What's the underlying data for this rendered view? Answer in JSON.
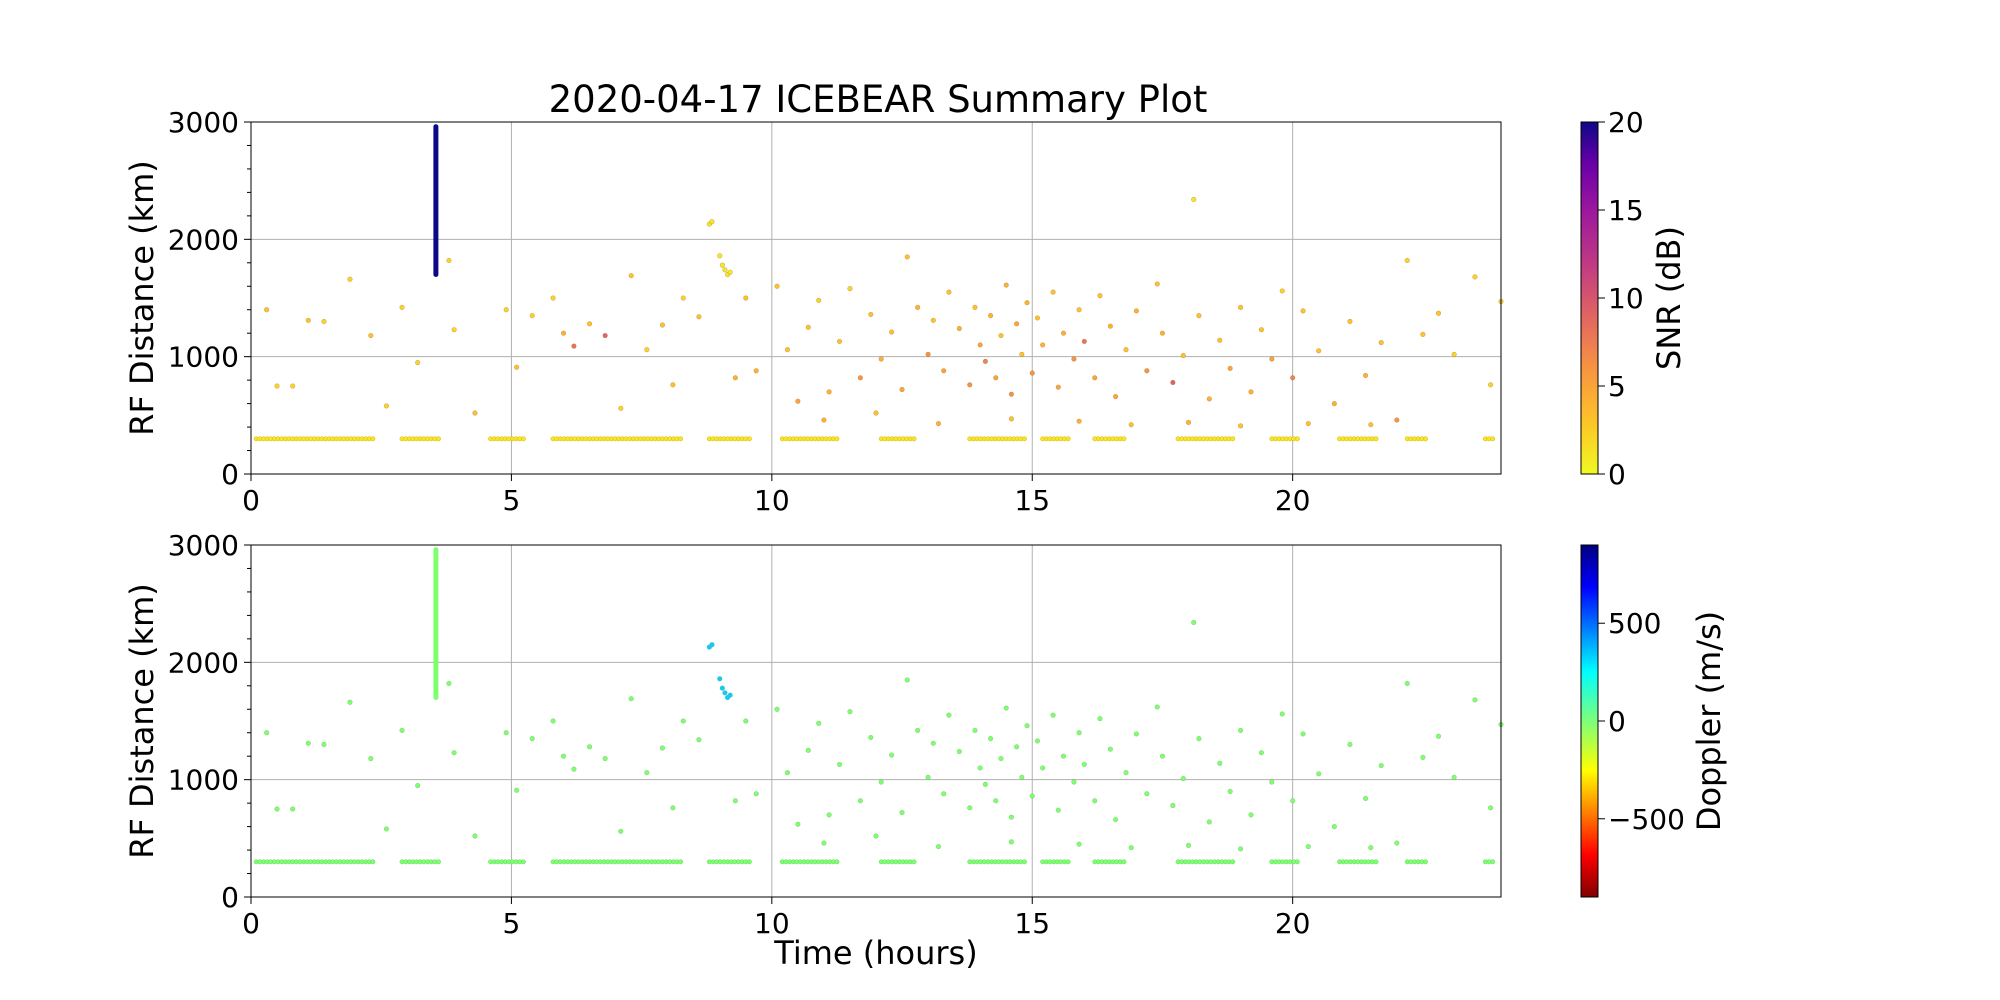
{
  "figure": {
    "title": "2020-04-17 ICEBEAR Summary Plot",
    "xlabel": "Time (hours)"
  },
  "chart_data": [
    {
      "type": "scatter",
      "name": "snr-panel",
      "ylabel": "RF Distance (km)",
      "xlim": [
        0,
        24
      ],
      "ylim": [
        0,
        3000
      ],
      "xticks": [
        0,
        5,
        10,
        15,
        20
      ],
      "yticks": [
        0,
        1000,
        2000,
        3000
      ],
      "grid": true,
      "colorbar": {
        "label": "SNR (dB)",
        "range": [
          0,
          20
        ],
        "ticks": [
          0,
          5,
          10,
          15,
          20
        ],
        "tick_labels": [
          "0",
          "5",
          "10",
          "15",
          "20"
        ],
        "colormap": "plasma_r"
      },
      "points": [
        [
          0.3,
          1400,
          3
        ],
        [
          0.5,
          750,
          2
        ],
        [
          0.8,
          750,
          2
        ],
        [
          1.1,
          1310,
          3
        ],
        [
          1.4,
          1300,
          2
        ],
        [
          1.9,
          1660,
          2
        ],
        [
          2.3,
          1180,
          3
        ],
        [
          2.6,
          580,
          2
        ],
        [
          2.9,
          1420,
          2
        ],
        [
          3.2,
          950,
          2
        ],
        [
          3.8,
          1820,
          2
        ],
        [
          3.9,
          1230,
          2
        ],
        [
          4.3,
          520,
          3
        ],
        [
          4.9,
          1400,
          2
        ],
        [
          5.1,
          910,
          3
        ],
        [
          5.4,
          1350,
          2
        ],
        [
          5.8,
          1500,
          2
        ],
        [
          6.0,
          1200,
          4
        ],
        [
          6.2,
          1090,
          8
        ],
        [
          6.5,
          1280,
          3
        ],
        [
          6.8,
          1180,
          9
        ],
        [
          7.1,
          560,
          2
        ],
        [
          7.3,
          1690,
          3
        ],
        [
          7.6,
          1060,
          2
        ],
        [
          7.9,
          1270,
          3
        ],
        [
          8.1,
          760,
          3
        ],
        [
          8.3,
          1500,
          2
        ],
        [
          8.6,
          1340,
          3
        ],
        [
          8.8,
          2130,
          1
        ],
        [
          8.85,
          2150,
          1
        ],
        [
          9.0,
          1860,
          1
        ],
        [
          9.05,
          1780,
          1
        ],
        [
          9.1,
          1740,
          1
        ],
        [
          9.15,
          1700,
          1
        ],
        [
          9.2,
          1720,
          1
        ],
        [
          9.3,
          820,
          4
        ],
        [
          9.5,
          1500,
          3
        ],
        [
          9.7,
          880,
          4
        ],
        [
          10.1,
          1600,
          3
        ],
        [
          10.3,
          1060,
          3
        ],
        [
          10.5,
          620,
          5
        ],
        [
          10.7,
          1250,
          3
        ],
        [
          10.9,
          1480,
          2
        ],
        [
          11.1,
          700,
          4
        ],
        [
          11.3,
          1130,
          3
        ],
        [
          11.5,
          1580,
          2
        ],
        [
          11.7,
          820,
          6
        ],
        [
          11.9,
          1360,
          3
        ],
        [
          12.1,
          980,
          4
        ],
        [
          12.3,
          1210,
          3
        ],
        [
          12.5,
          720,
          5
        ],
        [
          12.6,
          1850,
          3
        ],
        [
          12.8,
          1420,
          4
        ],
        [
          13.0,
          1020,
          6
        ],
        [
          13.1,
          1310,
          3
        ],
        [
          13.3,
          880,
          5
        ],
        [
          13.4,
          1550,
          3
        ],
        [
          13.6,
          1240,
          4
        ],
        [
          13.8,
          760,
          6
        ],
        [
          13.9,
          1420,
          3
        ],
        [
          14.0,
          1100,
          5
        ],
        [
          14.1,
          960,
          7
        ],
        [
          14.2,
          1350,
          4
        ],
        [
          14.3,
          820,
          5
        ],
        [
          14.4,
          1180,
          3
        ],
        [
          14.5,
          1610,
          4
        ],
        [
          14.6,
          680,
          6
        ],
        [
          14.7,
          1280,
          5
        ],
        [
          14.8,
          1020,
          3
        ],
        [
          14.9,
          1460,
          4
        ],
        [
          15.0,
          860,
          6
        ],
        [
          15.1,
          1330,
          3
        ],
        [
          15.2,
          1100,
          4
        ],
        [
          15.4,
          1550,
          3
        ],
        [
          15.5,
          740,
          5
        ],
        [
          15.6,
          1200,
          4
        ],
        [
          15.8,
          980,
          6
        ],
        [
          15.9,
          1400,
          3
        ],
        [
          16.0,
          1130,
          8
        ],
        [
          16.2,
          820,
          5
        ],
        [
          16.3,
          1520,
          3
        ],
        [
          16.5,
          1260,
          4
        ],
        [
          16.6,
          660,
          5
        ],
        [
          16.8,
          1060,
          3
        ],
        [
          17.0,
          1390,
          4
        ],
        [
          17.2,
          880,
          6
        ],
        [
          17.4,
          1620,
          3
        ],
        [
          17.5,
          1200,
          4
        ],
        [
          17.7,
          780,
          9
        ],
        [
          17.9,
          1010,
          3
        ],
        [
          18.1,
          2340,
          1
        ],
        [
          18.2,
          1350,
          3
        ],
        [
          18.4,
          640,
          4
        ],
        [
          18.6,
          1140,
          3
        ],
        [
          18.8,
          900,
          5
        ],
        [
          19.0,
          1420,
          3
        ],
        [
          19.2,
          700,
          4
        ],
        [
          19.4,
          1230,
          3
        ],
        [
          19.6,
          980,
          5
        ],
        [
          19.8,
          1560,
          2
        ],
        [
          20.0,
          820,
          7
        ],
        [
          20.2,
          1390,
          3
        ],
        [
          20.5,
          1050,
          3
        ],
        [
          20.8,
          600,
          4
        ],
        [
          21.1,
          1300,
          3
        ],
        [
          21.4,
          840,
          4
        ],
        [
          21.7,
          1120,
          3
        ],
        [
          22.0,
          460,
          6
        ],
        [
          22.2,
          1820,
          2
        ],
        [
          22.5,
          1190,
          3
        ],
        [
          22.8,
          1370,
          3
        ],
        [
          23.1,
          1020,
          2
        ],
        [
          23.5,
          1680,
          2
        ],
        [
          23.8,
          760,
          2
        ],
        [
          24.0,
          1470,
          2
        ],
        [
          11.0,
          460,
          4
        ],
        [
          12.0,
          520,
          3
        ],
        [
          13.2,
          430,
          4
        ],
        [
          14.6,
          470,
          3
        ],
        [
          15.9,
          450,
          4
        ],
        [
          16.9,
          420,
          3
        ],
        [
          18.0,
          440,
          4
        ],
        [
          19.0,
          410,
          3
        ],
        [
          20.3,
          430,
          3
        ],
        [
          21.5,
          420,
          3
        ]
      ],
      "baseline": {
        "distance": 300,
        "segments": [
          [
            0.1,
            2.4
          ],
          [
            2.9,
            3.6
          ],
          [
            4.6,
            5.3
          ],
          [
            5.8,
            8.3
          ],
          [
            8.8,
            9.6
          ],
          [
            10.2,
            11.3
          ],
          [
            12.1,
            12.8
          ],
          [
            13.8,
            14.9
          ],
          [
            15.2,
            15.7
          ],
          [
            16.2,
            16.8
          ],
          [
            17.8,
            18.9
          ],
          [
            19.6,
            20.1
          ],
          [
            20.9,
            21.6
          ],
          [
            22.2,
            22.6
          ],
          [
            23.7,
            23.9
          ]
        ],
        "snr": 1
      },
      "streaks": [
        {
          "x": 3.55,
          "y_from": 1700,
          "y_to": 2960,
          "snr": 20
        }
      ]
    },
    {
      "type": "scatter",
      "name": "doppler-panel",
      "ylabel": "RF Distance (km)",
      "xlim": [
        0,
        24
      ],
      "ylim": [
        0,
        3000
      ],
      "xticks": [
        0,
        5,
        10,
        15,
        20
      ],
      "yticks": [
        0,
        1000,
        2000,
        3000
      ],
      "grid": true,
      "colorbar": {
        "label": "Doppler (m/s)",
        "range": [
          -900,
          900
        ],
        "ticks": [
          -500,
          0,
          500
        ],
        "tick_labels": [
          "−500",
          "0",
          "500"
        ],
        "colormap": "jet_r"
      },
      "points_doppler_default": 0,
      "cyan_points": [
        [
          8.8,
          2130,
          450
        ],
        [
          8.85,
          2150,
          450
        ],
        [
          9.0,
          1860,
          400
        ],
        [
          9.05,
          1780,
          400
        ],
        [
          9.1,
          1740,
          400
        ],
        [
          9.15,
          1700,
          400
        ],
        [
          9.2,
          1720,
          400
        ]
      ],
      "baseline": {
        "distance": 300,
        "doppler": 0
      },
      "streaks": [
        {
          "x": 3.55,
          "y_from": 1700,
          "y_to": 2960,
          "doppler": 0
        }
      ]
    }
  ]
}
